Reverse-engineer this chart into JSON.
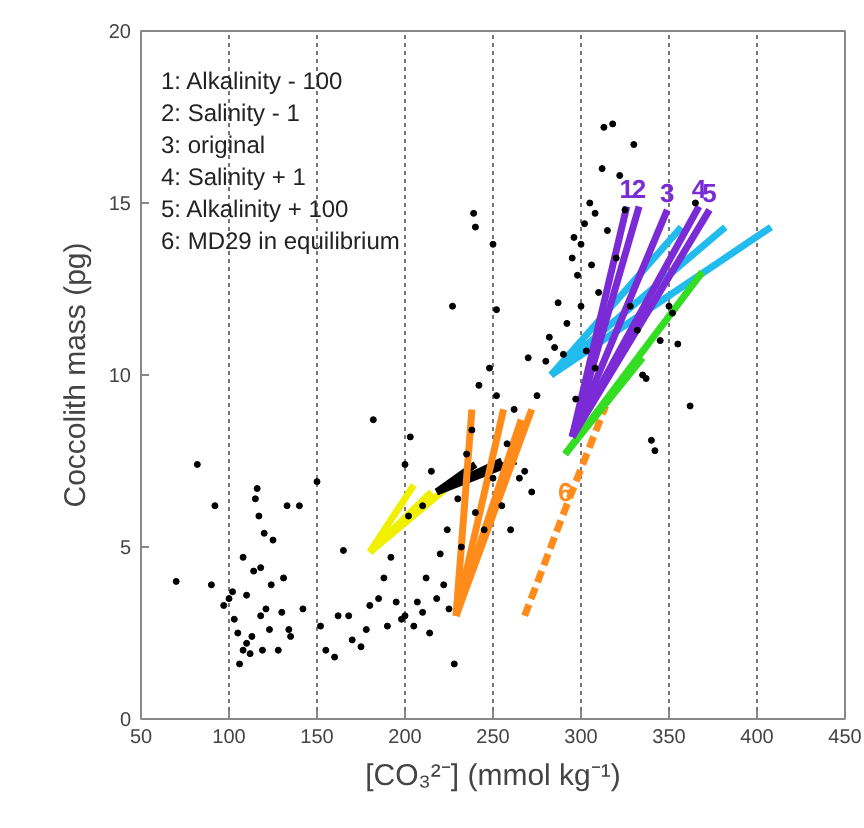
{
  "chart_data": {
    "type": "scatter",
    "xlabel": "[CO₃²⁻] (mmol kg⁻¹)",
    "ylabel": "Coccolith mass (pg)",
    "xlim": [
      50,
      450
    ],
    "ylim": [
      0,
      20
    ],
    "xticks": [
      50,
      100,
      150,
      200,
      250,
      300,
      350,
      400,
      450
    ],
    "yticks": [
      0,
      5,
      10,
      15,
      20
    ],
    "grid": "x",
    "annotations": [
      "1: Alkalinity - 100",
      "2: Salinity - 1",
      "3: original",
      "4: Salinity + 1",
      "5: Alkalinity + 100",
      "6: MD29 in equilibrium",
      {
        "text": "1",
        "x": 326,
        "y": 14.9
      },
      {
        "text": "2",
        "x": 333,
        "y": 14.9
      },
      {
        "text": "3",
        "x": 349,
        "y": 14.8
      },
      {
        "text": "4",
        "x": 367,
        "y": 14.9
      },
      {
        "text": "5",
        "x": 373,
        "y": 14.8
      },
      {
        "text": "6",
        "x": 291,
        "y": 6.1
      }
    ],
    "series": [
      {
        "marker": "circle",
        "color": "#000000",
        "x": [
          70,
          82,
          90,
          92,
          97,
          100,
          102,
          103,
          105,
          106,
          108,
          108,
          110,
          110,
          112,
          113,
          114,
          115,
          116,
          117,
          118,
          118,
          119,
          120,
          121,
          123,
          124,
          125,
          128,
          130,
          131,
          133,
          134,
          135,
          140,
          142,
          150,
          152,
          155,
          160,
          162,
          165,
          168,
          170,
          175,
          178,
          180,
          182,
          185,
          188,
          190,
          192,
          195,
          198,
          200,
          200,
          202,
          203,
          205,
          207,
          210,
          210,
          212,
          214,
          215,
          218,
          220,
          222,
          224,
          225,
          228,
          230,
          232,
          235,
          238,
          240,
          242,
          245,
          248,
          250,
          252,
          255,
          258,
          260,
          262,
          265,
          268,
          270,
          272,
          275,
          280,
          282,
          285,
          287,
          290,
          292,
          295,
          296,
          298,
          300,
          302,
          303,
          305,
          306,
          308,
          310,
          312,
          313,
          315,
          318,
          320,
          322,
          325,
          328,
          330,
          332,
          335,
          337,
          340,
          342,
          345,
          350,
          352,
          355,
          362,
          365,
          308,
          300,
          297,
          227,
          239,
          240,
          250,
          252
        ],
        "values": [
          4.0,
          7.4,
          3.9,
          6.2,
          3.3,
          3.5,
          3.7,
          2.9,
          2.5,
          1.6,
          2.0,
          4.7,
          2.2,
          3.6,
          1.9,
          2.4,
          4.3,
          6.4,
          6.7,
          5.9,
          3.0,
          4.4,
          2.0,
          5.4,
          3.2,
          2.6,
          3.9,
          5.2,
          2.0,
          3.1,
          4.1,
          6.2,
          2.6,
          2.4,
          6.2,
          3.2,
          6.9,
          2.7,
          2.0,
          1.8,
          3.0,
          4.9,
          3.0,
          2.3,
          2.1,
          2.6,
          3.3,
          8.7,
          3.5,
          4.1,
          2.7,
          4.7,
          3.4,
          2.9,
          7.4,
          3.0,
          5.9,
          8.2,
          2.7,
          3.4,
          3.1,
          6.2,
          4.1,
          2.5,
          7.2,
          3.5,
          4.8,
          3.9,
          5.5,
          3.2,
          1.6,
          6.4,
          5.0,
          7.7,
          8.4,
          6.0,
          9.7,
          5.5,
          10.2,
          7.0,
          9.4,
          6.2,
          8.0,
          5.5,
          9.0,
          7.0,
          7.2,
          10.5,
          6.6,
          9.4,
          10.4,
          11.1,
          10.8,
          12.1,
          10.6,
          11.5,
          13.4,
          14.0,
          12.9,
          13.8,
          14.4,
          10.7,
          15.0,
          13.2,
          14.7,
          12.4,
          16.0,
          17.2,
          14.2,
          17.3,
          13.4,
          15.8,
          14.8,
          12.0,
          16.7,
          11.3,
          10.0,
          9.9,
          8.1,
          7.8,
          11.0,
          12.0,
          11.8,
          10.9,
          9.1,
          15.0,
          10.2,
          12.0,
          9.3,
          12.0,
          14.7,
          14.3,
          13.8,
          11.9
        ]
      },
      {
        "type": "line",
        "color": "#f0f000",
        "x": [
          180,
          205
        ],
        "values": [
          4.85,
          6.8
        ]
      },
      {
        "type": "line",
        "color": "#f0f000",
        "x": [
          180,
          215
        ],
        "values": [
          4.85,
          6.6
        ]
      },
      {
        "type": "line",
        "color": "#f0f000",
        "x": [
          180,
          228
        ],
        "values": [
          4.85,
          6.9
        ]
      },
      {
        "type": "line",
        "color": "#000000",
        "x": [
          218,
          240
        ],
        "values": [
          6.6,
          7.4
        ]
      },
      {
        "type": "line",
        "color": "#000000",
        "x": [
          218,
          255
        ],
        "values": [
          6.6,
          7.5
        ]
      },
      {
        "type": "line",
        "color": "#000000",
        "x": [
          218,
          263
        ],
        "values": [
          6.6,
          7.5
        ]
      },
      {
        "type": "line",
        "color": "#ff8c1a",
        "x": [
          229,
          238
        ],
        "values": [
          3.0,
          9.0
        ]
      },
      {
        "type": "line",
        "color": "#ff8c1a",
        "x": [
          229,
          256
        ],
        "values": [
          3.0,
          9.0
        ]
      },
      {
        "type": "line",
        "color": "#ff8c1a",
        "x": [
          229,
          266
        ],
        "values": [
          3.0,
          8.7
        ]
      },
      {
        "type": "line",
        "color": "#ff8c1a",
        "x": [
          229,
          272
        ],
        "values": [
          3.0,
          9.0
        ]
      },
      {
        "type": "line",
        "color": "#ff8c1a",
        "line_style": "dashed",
        "x": [
          268,
          291,
          314
        ],
        "values": [
          3.0,
          6.1,
          9.1
        ]
      },
      {
        "type": "line",
        "color": "#22bbee",
        "x": [
          283,
          357
        ],
        "values": [
          10.0,
          14.3
        ]
      },
      {
        "type": "line",
        "color": "#22bbee",
        "x": [
          283,
          382
        ],
        "values": [
          10.0,
          14.3
        ]
      },
      {
        "type": "line",
        "color": "#22bbee",
        "x": [
          283,
          408
        ],
        "values": [
          10.0,
          14.3
        ]
      },
      {
        "type": "line",
        "color": "#33dd22",
        "x": [
          291,
          335
        ],
        "values": [
          7.7,
          10.5
        ]
      },
      {
        "type": "line",
        "color": "#33dd22",
        "x": [
          291,
          369
        ],
        "values": [
          7.7,
          13.0
        ]
      },
      {
        "type": "line",
        "color": "#7a2bd6",
        "x": [
          295,
          326
        ],
        "values": [
          8.2,
          14.9
        ]
      },
      {
        "type": "line",
        "color": "#7a2bd6",
        "x": [
          295,
          333
        ],
        "values": [
          8.2,
          14.9
        ]
      },
      {
        "type": "line",
        "color": "#7a2bd6",
        "x": [
          295,
          349
        ],
        "values": [
          8.2,
          14.8
        ]
      },
      {
        "type": "line",
        "color": "#7a2bd6",
        "x": [
          295,
          367
        ],
        "values": [
          8.2,
          14.9
        ]
      },
      {
        "type": "line",
        "color": "#7a2bd6",
        "x": [
          295,
          373
        ],
        "values": [
          8.2,
          14.8
        ]
      }
    ]
  }
}
